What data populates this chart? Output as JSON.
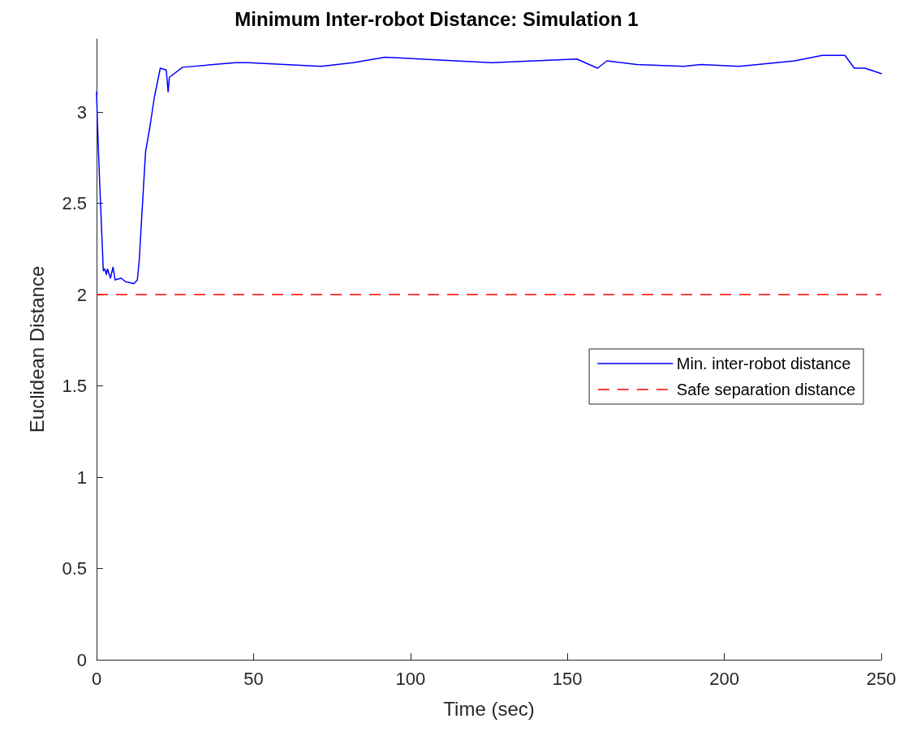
{
  "chart_data": {
    "type": "line",
    "title": "Minimum Inter-robot Distance: Simulation 1",
    "xlabel": "Time (sec)",
    "ylabel": "Euclidean Distance",
    "series": [
      {
        "name": "Min. inter-robot distance",
        "color": "#0000ff",
        "x": [
          0,
          0.26,
          0.95,
          2.15,
          2.67,
          3.1,
          3.5,
          4.4,
          5.25,
          5.9,
          7.8,
          9.3,
          11.9,
          13.0,
          13.6,
          15.6,
          17.1,
          18.4,
          20.3,
          22.2,
          22.8,
          23.2,
          27.4,
          44.2,
          46.8,
          48.4,
          71.5,
          81.7,
          91.9,
          125.9,
          153,
          159.6,
          162.6,
          172.1,
          187.1,
          192.5,
          204.8,
          222.4,
          231.2,
          238.4,
          241.4,
          244.8,
          250
        ],
        "values": [
          3.11,
          2.95,
          2.63,
          2.13,
          2.14,
          2.11,
          2.14,
          2.09,
          2.15,
          2.08,
          2.09,
          2.07,
          2.06,
          2.08,
          2.19,
          2.78,
          2.93,
          3.08,
          3.24,
          3.23,
          3.11,
          3.19,
          3.245,
          3.27,
          3.27,
          3.27,
          3.25,
          3.27,
          3.3,
          3.27,
          3.29,
          3.24,
          3.28,
          3.26,
          3.25,
          3.26,
          3.25,
          3.28,
          3.31,
          3.31,
          3.24,
          3.24,
          3.21
        ]
      }
    ],
    "ref_lines": [
      {
        "axis": "y",
        "value": 2,
        "label": "Safe separation distance",
        "color": "#ff0000",
        "line_style": "dashed"
      }
    ],
    "xlim": [
      0,
      250
    ],
    "xticks": [
      0,
      50,
      100,
      150,
      200,
      250
    ],
    "ylim": [
      0,
      3.4
    ],
    "yticks": [
      0,
      0.5,
      1,
      1.5,
      2,
      2.5,
      3
    ],
    "grid": false,
    "legend": "right",
    "marker": "none",
    "line_style": "solid"
  }
}
